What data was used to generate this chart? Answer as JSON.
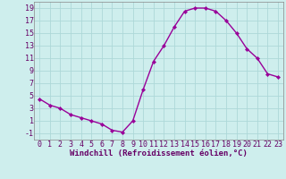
{
  "x": [
    0,
    1,
    2,
    3,
    4,
    5,
    6,
    7,
    8,
    9,
    10,
    11,
    12,
    13,
    14,
    15,
    16,
    17,
    18,
    19,
    20,
    21,
    22,
    23
  ],
  "y": [
    4.5,
    3.5,
    3.0,
    2.0,
    1.5,
    1.0,
    0.5,
    -0.5,
    -0.8,
    1.0,
    6.0,
    10.5,
    13.0,
    16.0,
    18.5,
    19.0,
    19.0,
    18.5,
    17.0,
    15.0,
    12.5,
    11.0,
    8.5,
    8.0
  ],
  "line_color": "#990099",
  "marker": "D",
  "marker_size": 2.2,
  "bg_color": "#ceeeed",
  "grid_color": "#add8d8",
  "xlabel": "Windchill (Refroidissement éolien,°C)",
  "xlabel_fontsize": 6.5,
  "tick_fontsize": 6,
  "xlim": [
    -0.5,
    23.5
  ],
  "ylim": [
    -2,
    20
  ],
  "yticks": [
    -1,
    1,
    3,
    5,
    7,
    9,
    11,
    13,
    15,
    17,
    19
  ],
  "xticks": [
    0,
    1,
    2,
    3,
    4,
    5,
    6,
    7,
    8,
    9,
    10,
    11,
    12,
    13,
    14,
    15,
    16,
    17,
    18,
    19,
    20,
    21,
    22,
    23
  ]
}
